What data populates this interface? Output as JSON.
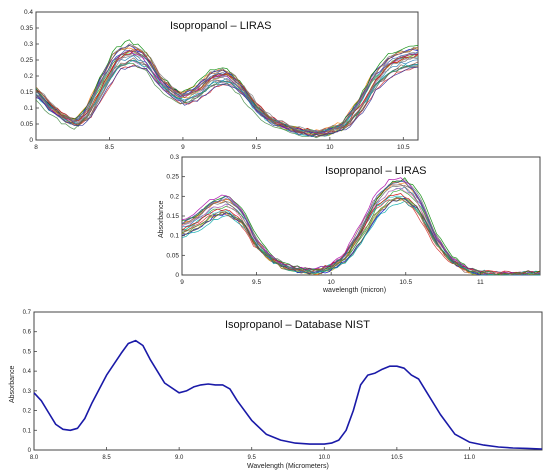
{
  "chart_data": [
    {
      "type": "line",
      "title": "Isopropanol – LIRAS",
      "xlabel": "",
      "ylabel": "",
      "xlim": [
        8,
        10.6
      ],
      "ylim": [
        0,
        0.4
      ],
      "xticks": [
        "8",
        "8.5",
        "9",
        "9.5",
        "10",
        "10.5"
      ],
      "yticks": [
        "0",
        "0.05",
        "0.1",
        "0.15",
        "0.2",
        "0.25",
        "0.3",
        "0.35",
        "0.4"
      ],
      "grid": false,
      "series_count": 24,
      "mean_profile": {
        "x": [
          8.0,
          8.1,
          8.2,
          8.27,
          8.35,
          8.45,
          8.55,
          8.65,
          8.75,
          8.85,
          8.95,
          9.0,
          9.1,
          9.2,
          9.3,
          9.4,
          9.5,
          9.6,
          9.7,
          9.8,
          9.9,
          10.0,
          10.1,
          10.2,
          10.3,
          10.4,
          10.5,
          10.6
        ],
        "y": [
          0.15,
          0.1,
          0.065,
          0.05,
          0.08,
          0.17,
          0.25,
          0.27,
          0.25,
          0.18,
          0.14,
          0.13,
          0.15,
          0.19,
          0.2,
          0.16,
          0.1,
          0.06,
          0.04,
          0.025,
          0.02,
          0.025,
          0.045,
          0.1,
          0.18,
          0.23,
          0.25,
          0.26
        ]
      }
    },
    {
      "type": "line",
      "title": "Isopropanol – LIRAS",
      "xlabel": "wavelength (micron)",
      "ylabel": "Absorbance",
      "xlim": [
        9,
        11.4
      ],
      "ylim": [
        0,
        0.3
      ],
      "xticks": [
        "9",
        "9.5",
        "10",
        "10.5",
        "11"
      ],
      "yticks": [
        "0",
        "0.05",
        "0.1",
        "0.15",
        "0.2",
        "0.25",
        "0.3"
      ],
      "grid": false,
      "series_count": 20,
      "mean_profile": {
        "x": [
          9.0,
          9.1,
          9.2,
          9.3,
          9.4,
          9.5,
          9.6,
          9.7,
          9.8,
          9.9,
          10.0,
          10.1,
          10.2,
          10.3,
          10.4,
          10.48,
          10.55,
          10.6,
          10.7,
          10.8,
          10.9,
          11.0,
          11.1,
          11.2,
          11.3,
          11.4
        ],
        "y": [
          0.12,
          0.14,
          0.17,
          0.18,
          0.15,
          0.08,
          0.04,
          0.02,
          0.012,
          0.01,
          0.02,
          0.05,
          0.11,
          0.18,
          0.215,
          0.22,
          0.2,
          0.17,
          0.09,
          0.04,
          0.015,
          0.005,
          0.0,
          0.002,
          0.003,
          0.002
        ]
      }
    },
    {
      "type": "line",
      "title": "Isopropanol – Database NIST",
      "xlabel": "Wavelength (Micrometers)",
      "ylabel": "Absorbance",
      "xlim": [
        8.0,
        11.5
      ],
      "ylim": [
        0,
        0.7
      ],
      "xticks": [
        "8.0",
        "8.5",
        "9.0",
        "9.5",
        "10.0",
        "10.5",
        "11.0"
      ],
      "yticks": [
        "0",
        "0.1",
        "0.2",
        "0.3",
        "0.4",
        "0.5",
        "0.6",
        "0.7"
      ],
      "grid": false,
      "color": "#1a1aa8",
      "series": [
        {
          "x": [
            8.0,
            8.05,
            8.1,
            8.15,
            8.2,
            8.25,
            8.3,
            8.35,
            8.4,
            8.5,
            8.6,
            8.65,
            8.7,
            8.75,
            8.8,
            8.9,
            9.0,
            9.05,
            9.1,
            9.15,
            9.2,
            9.25,
            9.3,
            9.35,
            9.4,
            9.5,
            9.6,
            9.7,
            9.8,
            9.9,
            10.0,
            10.05,
            10.1,
            10.15,
            10.2,
            10.25,
            10.3,
            10.35,
            10.4,
            10.45,
            10.5,
            10.55,
            10.6,
            10.65,
            10.7,
            10.8,
            10.9,
            11.0,
            11.1,
            11.2,
            11.3,
            11.4,
            11.5
          ],
          "y": [
            0.29,
            0.25,
            0.19,
            0.13,
            0.105,
            0.1,
            0.11,
            0.16,
            0.24,
            0.38,
            0.49,
            0.54,
            0.555,
            0.53,
            0.46,
            0.34,
            0.29,
            0.3,
            0.32,
            0.33,
            0.335,
            0.33,
            0.33,
            0.31,
            0.25,
            0.15,
            0.08,
            0.05,
            0.035,
            0.03,
            0.03,
            0.035,
            0.05,
            0.1,
            0.2,
            0.33,
            0.38,
            0.39,
            0.41,
            0.425,
            0.425,
            0.415,
            0.38,
            0.36,
            0.3,
            0.18,
            0.08,
            0.04,
            0.025,
            0.015,
            0.01,
            0.008,
            0.005
          ]
        }
      ]
    }
  ]
}
